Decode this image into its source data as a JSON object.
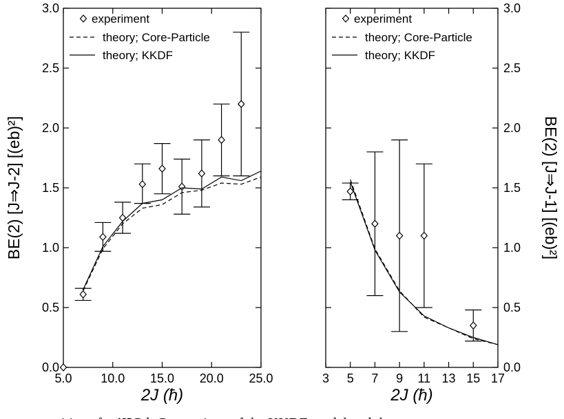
{
  "chart_data": [
    {
      "type": "scatter",
      "panel": "left",
      "xlabel": "2J (ħ)",
      "ylabel": "BE(2) [J⇒J-2] [(eb)²]",
      "xlim": [
        5,
        25
      ],
      "ylim": [
        0,
        3
      ],
      "xticks": [
        "5.0",
        "10.0",
        "15.0",
        "20.0",
        "25.0"
      ],
      "xtick_values": [
        5,
        10,
        15,
        20,
        25
      ],
      "yticks": [
        "0.0",
        "0.5",
        "1.0",
        "1.5",
        "2.0",
        "2.5",
        "3.0"
      ],
      "ytick_values": [
        0,
        0.5,
        1,
        1.5,
        2,
        2.5,
        3
      ],
      "legend_position": "top-left",
      "legend": [
        "experiment",
        "theory; Core-Particle",
        "theory; KKDF"
      ],
      "series": [
        {
          "name": "experiment",
          "style": "diamond",
          "x": [
            5,
            7,
            9,
            11,
            13,
            15,
            17,
            19,
            21,
            23
          ],
          "y": [
            0.0,
            0.61,
            1.09,
            1.25,
            1.53,
            1.66,
            1.51,
            1.62,
            1.9,
            2.2
          ],
          "err_low": [
            0.0,
            0.56,
            0.97,
            1.12,
            1.37,
            1.45,
            1.28,
            1.34,
            1.6,
            1.6
          ],
          "err_high": [
            0.0,
            0.66,
            1.21,
            1.38,
            1.7,
            1.87,
            1.74,
            1.9,
            2.2,
            2.8
          ]
        },
        {
          "name": "theory; Core-Particle",
          "style": "dashed",
          "x": [
            7,
            9,
            11,
            13,
            15,
            17,
            19,
            21,
            23,
            25
          ],
          "y": [
            0.64,
            0.99,
            1.2,
            1.33,
            1.36,
            1.46,
            1.48,
            1.54,
            1.53,
            1.59
          ]
        },
        {
          "name": "theory; KKDF",
          "style": "solid",
          "x": [
            7,
            9,
            11,
            13,
            15,
            17,
            19,
            21,
            23,
            25
          ],
          "y": [
            0.65,
            1.01,
            1.22,
            1.37,
            1.4,
            1.5,
            1.49,
            1.59,
            1.56,
            1.64
          ]
        }
      ]
    },
    {
      "type": "scatter",
      "panel": "right",
      "xlabel": "2J (ħ)",
      "ylabel": "BE(2) [J⇒J-1] [(eb)²]",
      "xlim": [
        3,
        17
      ],
      "ylim": [
        0,
        3
      ],
      "xticks": [
        "3",
        "5",
        "7",
        "9",
        "11",
        "13",
        "15",
        "17"
      ],
      "xtick_values": [
        3,
        5,
        7,
        9,
        11,
        13,
        15,
        17
      ],
      "yticks": [
        "0.0",
        "0.5",
        "1.0",
        "1.5",
        "2.0",
        "2.5",
        "3.0"
      ],
      "ytick_values": [
        0,
        0.5,
        1,
        1.5,
        2,
        2.5,
        3
      ],
      "legend_position": "top-left",
      "legend": [
        "experiment",
        "theory; Core-Particle",
        "theory; KKDF"
      ],
      "series": [
        {
          "name": "experiment",
          "style": "diamond",
          "x": [
            5,
            7,
            9,
            11,
            15
          ],
          "y": [
            1.47,
            1.2,
            1.1,
            1.1,
            0.35
          ],
          "err_low": [
            1.4,
            0.6,
            0.3,
            0.5,
            0.22
          ],
          "err_high": [
            1.54,
            1.8,
            1.9,
            1.7,
            0.48
          ]
        },
        {
          "name": "theory; Core-Particle",
          "style": "dashed",
          "x": [
            5,
            7,
            9,
            11,
            13,
            15,
            17
          ],
          "y": [
            1.57,
            0.99,
            0.64,
            0.42,
            0.33,
            0.24,
            0.19
          ]
        },
        {
          "name": "theory; KKDF",
          "style": "solid",
          "x": [
            5,
            7,
            9,
            11,
            13,
            15,
            17
          ],
          "y": [
            1.55,
            0.98,
            0.63,
            0.43,
            0.33,
            0.25,
            0.19
          ]
        }
      ]
    }
  ],
  "caption_text": "transitions for ¹⁵⁷Gd. Comparison of the KKDF model and th"
}
